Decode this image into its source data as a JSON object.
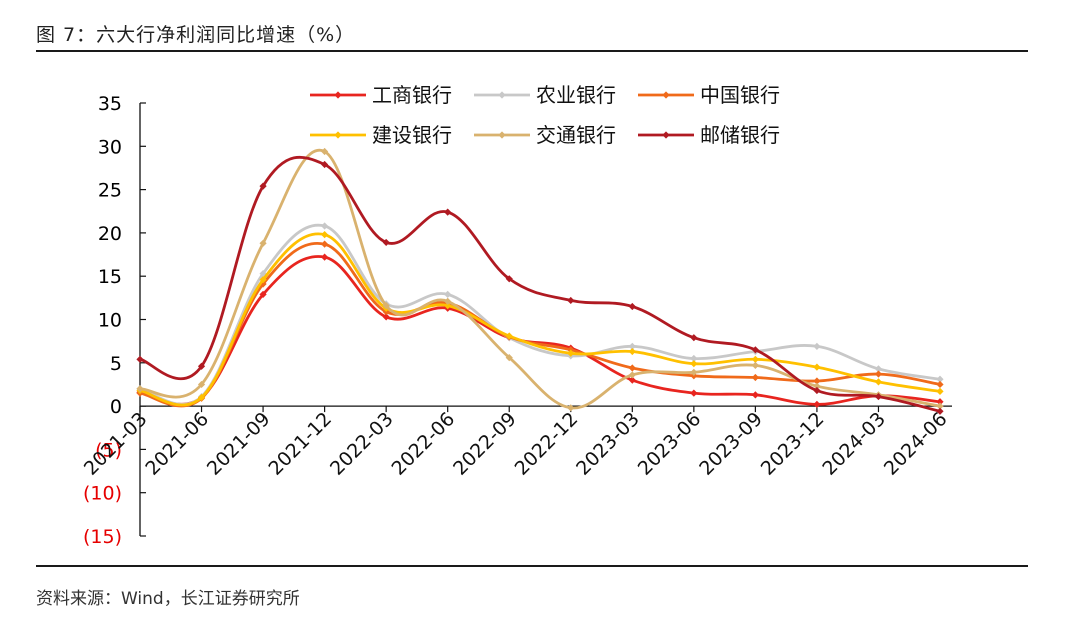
{
  "figure": {
    "title": "图 7：六大行净利润同比增速（%）",
    "source": "资料来源：Wind，长江证券研究所"
  },
  "chart_data": {
    "type": "line",
    "x": [
      "2021-03",
      "2021-06",
      "2021-09",
      "2021-12",
      "2022-03",
      "2022-06",
      "2022-09",
      "2022-12",
      "2023-03",
      "2023-06",
      "2023-09",
      "2023-12",
      "2024-03",
      "2024-06"
    ],
    "ylim": [
      -15,
      35
    ],
    "yticks": [
      35,
      30,
      25,
      20,
      15,
      10,
      5,
      0,
      -5,
      -10,
      -15
    ],
    "ytick_labels": [
      "35",
      "30",
      "25",
      "20",
      "15",
      "10",
      "5",
      "0",
      "(5)",
      "(10)",
      "(15)"
    ],
    "negative_tick_color": "#e60000",
    "grid": false,
    "legend_position": "top",
    "series": [
      {
        "name": "工商银行",
        "color": "#e8251f",
        "values": [
          1.6,
          1.0,
          12.9,
          17.2,
          10.3,
          11.3,
          7.9,
          6.7,
          3.0,
          1.5,
          1.3,
          0.2,
          1.2,
          0.5
        ]
      },
      {
        "name": "农业银行",
        "color": "#c8c8c8",
        "values": [
          2.0,
          1.1,
          15.3,
          20.8,
          11.8,
          12.9,
          7.9,
          5.8,
          6.9,
          5.5,
          6.3,
          6.9,
          4.3,
          3.1
        ]
      },
      {
        "name": "中国银行",
        "color": "#f06a1a",
        "values": [
          1.5,
          0.9,
          14.1,
          18.7,
          10.9,
          11.9,
          8.0,
          6.5,
          4.4,
          3.5,
          3.3,
          2.9,
          3.7,
          2.5
        ]
      },
      {
        "name": "建设银行",
        "color": "#ffc000",
        "values": [
          1.8,
          1.0,
          14.6,
          19.8,
          11.3,
          11.6,
          8.1,
          6.1,
          6.3,
          4.9,
          5.4,
          4.5,
          2.8,
          1.7
        ]
      },
      {
        "name": "交通银行",
        "color": "#d9b26e",
        "values": [
          2.0,
          2.5,
          18.8,
          29.4,
          11.6,
          12.1,
          5.6,
          -0.2,
          3.6,
          3.9,
          4.7,
          2.3,
          1.3,
          0.0
        ]
      },
      {
        "name": "邮储银行",
        "color": "#b01a22",
        "values": [
          5.4,
          4.6,
          25.4,
          27.9,
          18.9,
          22.4,
          14.7,
          12.2,
          11.5,
          7.9,
          6.5,
          1.8,
          1.1,
          -0.6
        ]
      }
    ]
  }
}
